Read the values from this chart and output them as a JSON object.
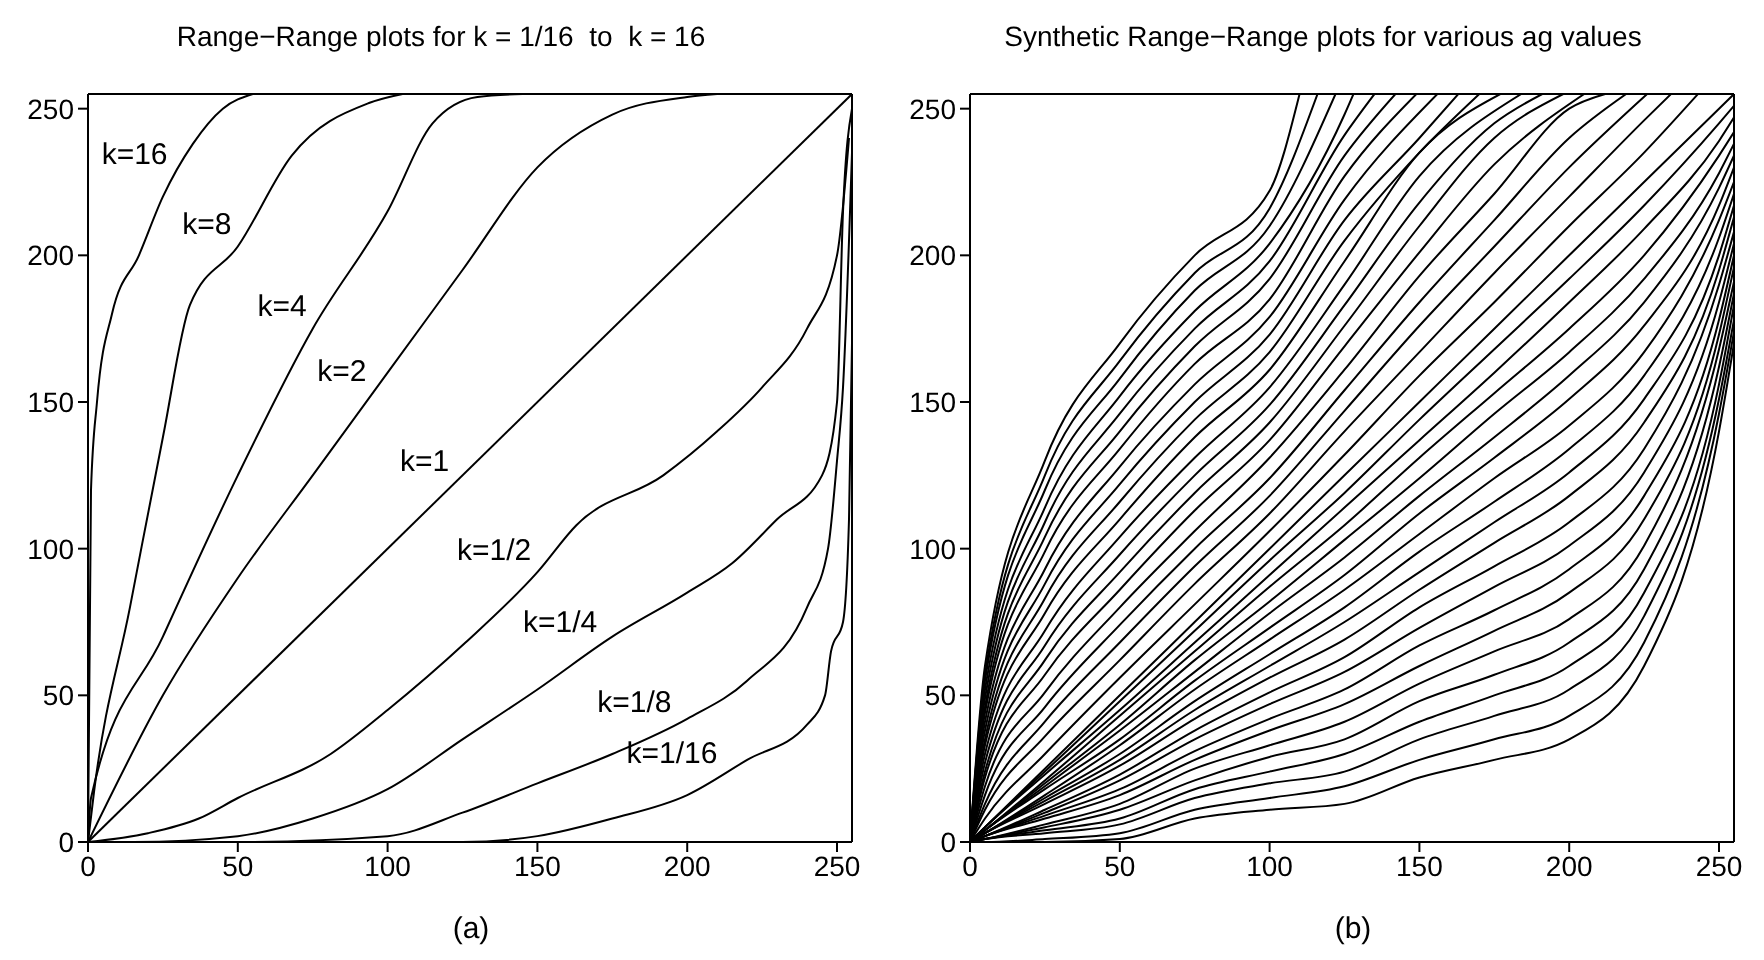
{
  "chart_data": [
    {
      "type": "line",
      "title": "Range−Range plots for k = 1/16  to  k = 16",
      "xlabel": "(a)",
      "xlim": [
        0,
        255
      ],
      "ylim": [
        0,
        255
      ],
      "xticks": [
        0,
        50,
        100,
        150,
        200,
        250
      ],
      "yticks": [
        0,
        50,
        100,
        150,
        200,
        250
      ],
      "marker": "none",
      "series": [
        {
          "name": "k=16",
          "color": "#000000",
          "x": [
            0,
            1,
            3,
            8,
            17,
            25,
            35,
            45,
            55
          ],
          "values": [
            0,
            120,
            150,
            180,
            200,
            220,
            238,
            250,
            255
          ]
        },
        {
          "name": "k=8",
          "color": "#000000",
          "x": [
            0,
            2,
            14,
            25,
            34,
            50,
            68,
            94,
            105
          ],
          "values": [
            0,
            17,
            80,
            138,
            183,
            203,
            234,
            252,
            255
          ]
        },
        {
          "name": "k=4",
          "color": "#000000",
          "x": [
            0,
            1,
            25,
            50,
            75,
            100,
            115,
            130,
            145
          ],
          "values": [
            0,
            15,
            70,
            125,
            175,
            215,
            245,
            254,
            255
          ]
        },
        {
          "name": "k=2",
          "color": "#000000",
          "x": [
            0,
            25,
            50,
            75,
            100,
            125,
            150,
            175,
            200,
            210
          ],
          "values": [
            0,
            50,
            90,
            125,
            160,
            195,
            230,
            248,
            254,
            255
          ]
        },
        {
          "name": "k=1",
          "color": "#000000",
          "x": [
            0,
            255
          ],
          "values": [
            0,
            255
          ]
        },
        {
          "name": "k=1/2",
          "color": "#000000",
          "x": [
            0,
            20,
            37,
            50,
            81,
            100,
            126,
            150,
            163,
            192,
            210,
            225,
            240,
            250,
            254
          ],
          "values": [
            0,
            3,
            8,
            15,
            30,
            45,
            68,
            92,
            108,
            125,
            140,
            155,
            175,
            200,
            240
          ]
        },
        {
          "name": "k=1/4",
          "color": "#000000",
          "x": [
            0,
            15,
            50,
            75,
            100,
            125,
            150,
            175,
            200,
            215,
            230,
            245,
            250,
            252,
            255
          ],
          "values": [
            0,
            0,
            2,
            8,
            18,
            35,
            52,
            70,
            85,
            95,
            110,
            125,
            150,
            215,
            250
          ]
        },
        {
          "name": "k=1/8",
          "color": "#000000",
          "x": [
            0,
            50,
            100,
            125,
            150,
            175,
            200,
            220,
            240,
            247,
            250,
            252,
            255
          ],
          "values": [
            0,
            0,
            2,
            10,
            20,
            30,
            42,
            55,
            80,
            100,
            130,
            155,
            235
          ]
        },
        {
          "name": "k=1/16",
          "color": "#000000",
          "x": [
            0,
            125,
            150,
            175,
            200,
            220,
            240,
            246,
            248,
            252,
            254,
            255
          ],
          "values": [
            0,
            0,
            2,
            8,
            16,
            28,
            40,
            50,
            65,
            75,
            110,
            170
          ]
        }
      ]
    },
    {
      "type": "line",
      "title": "Synthetic Range−Range plots for various ag values",
      "xlabel": "(b)",
      "xlim": [
        0,
        255
      ],
      "ylim": [
        0,
        255
      ],
      "xticks": [
        0,
        50,
        100,
        150,
        200,
        250
      ],
      "yticks": [
        0,
        50,
        100,
        150,
        200,
        250
      ],
      "marker": "none",
      "x": [
        0,
        5,
        25,
        50,
        75,
        100,
        125,
        150,
        175,
        200,
        225,
        250,
        255
      ],
      "series": [
        {
          "color": "#000000",
          "x": [
            0,
            5,
            25,
            50,
            75,
            100,
            110
          ],
          "values": [
            0,
            60,
            130,
            170,
            200,
            222,
            255
          ]
        },
        {
          "color": "#000000",
          "x": [
            0,
            5,
            25,
            50,
            75,
            100,
            116
          ],
          "values": [
            0,
            57,
            125,
            164,
            194,
            216,
            255
          ]
        },
        {
          "color": "#000000",
          "x": [
            0,
            5,
            25,
            50,
            75,
            100,
            122
          ],
          "values": [
            0,
            55,
            120,
            158,
            188,
            210,
            255
          ]
        },
        {
          "color": "#000000",
          "x": [
            0,
            5,
            25,
            50,
            75,
            100,
            125,
            128
          ],
          "values": [
            0,
            52,
            114,
            152,
            181,
            204,
            248,
            255
          ]
        },
        {
          "color": "#000000",
          "x": [
            0,
            5,
            25,
            50,
            75,
            100,
            125,
            135
          ],
          "values": [
            0,
            49,
            109,
            146,
            175,
            198,
            241,
            255
          ]
        },
        {
          "color": "#000000",
          "x": [
            0,
            5,
            25,
            50,
            75,
            100,
            125,
            142
          ],
          "values": [
            0,
            46,
            104,
            140,
            169,
            192,
            234,
            255
          ]
        },
        {
          "color": "#000000",
          "x": [
            0,
            5,
            25,
            50,
            75,
            100,
            125,
            149
          ],
          "values": [
            0,
            44,
            99,
            134,
            163,
            185,
            227,
            255
          ]
        },
        {
          "color": "#000000",
          "x": [
            0,
            5,
            25,
            50,
            75,
            100,
            125,
            156
          ],
          "values": [
            0,
            41,
            93,
            128,
            156,
            179,
            219,
            255
          ]
        },
        {
          "color": "#000000",
          "x": [
            0,
            5,
            25,
            50,
            75,
            100,
            125,
            150,
            163
          ],
          "values": [
            0,
            38,
            88,
            122,
            150,
            173,
            212,
            240,
            255
          ]
        },
        {
          "color": "#000000",
          "x": [
            0,
            5,
            25,
            50,
            75,
            100,
            125,
            150,
            170
          ],
          "values": [
            0,
            35,
            83,
            116,
            144,
            167,
            205,
            235,
            255
          ]
        },
        {
          "color": "#000000",
          "x": [
            0,
            5,
            25,
            50,
            75,
            100,
            125,
            150,
            177
          ],
          "values": [
            0,
            33,
            78,
            110,
            138,
            161,
            198,
            235,
            255
          ]
        },
        {
          "color": "#000000",
          "x": [
            0,
            5,
            25,
            50,
            75,
            100,
            125,
            150,
            184
          ],
          "values": [
            0,
            30,
            72,
            104,
            131,
            155,
            190,
            227,
            255
          ]
        },
        {
          "color": "#000000",
          "x": [
            0,
            5,
            25,
            50,
            75,
            100,
            125,
            150,
            175,
            191
          ],
          "values": [
            0,
            27,
            67,
            98,
            125,
            149,
            183,
            218,
            245,
            255
          ]
        },
        {
          "color": "#000000",
          "x": [
            0,
            5,
            25,
            50,
            75,
            100,
            125,
            150,
            175,
            198
          ],
          "values": [
            0,
            24,
            62,
            92,
            119,
            143,
            176,
            210,
            240,
            255
          ]
        },
        {
          "color": "#000000",
          "x": [
            0,
            5,
            25,
            50,
            75,
            100,
            125,
            150,
            175,
            205
          ],
          "values": [
            0,
            22,
            57,
            86,
            113,
            137,
            169,
            201,
            231,
            255
          ]
        },
        {
          "color": "#000000",
          "x": [
            0,
            5,
            25,
            50,
            75,
            100,
            125,
            150,
            175,
            200,
            212
          ],
          "values": [
            0,
            19,
            51,
            80,
            106,
            131,
            161,
            193,
            221,
            250,
            255
          ]
        },
        {
          "color": "#000000",
          "x": [
            0,
            5,
            25,
            50,
            75,
            100,
            125,
            150,
            175,
            200,
            219
          ],
          "values": [
            0,
            16,
            46,
            74,
            100,
            124,
            154,
            184,
            212,
            240,
            255
          ]
        },
        {
          "color": "#000000",
          "x": [
            0,
            5,
            25,
            50,
            75,
            100,
            125,
            150,
            175,
            200,
            226
          ],
          "values": [
            0,
            13,
            41,
            68,
            94,
            118,
            147,
            176,
            203,
            230,
            255
          ]
        },
        {
          "color": "#000000",
          "x": [
            0,
            5,
            25,
            50,
            75,
            100,
            125,
            150,
            175,
            200,
            225,
            234
          ],
          "values": [
            0,
            11,
            36,
            62,
            88,
            112,
            140,
            167,
            194,
            220,
            246,
            255
          ]
        },
        {
          "color": "#000000",
          "x": [
            0,
            5,
            25,
            50,
            75,
            100,
            125,
            150,
            175,
            200,
            225,
            243
          ],
          "values": [
            0,
            8,
            30,
            56,
            81,
            106,
            132,
            159,
            184,
            210,
            235,
            255
          ]
        },
        {
          "color": "#000000",
          "values": [
            0,
            5,
            25,
            50,
            75,
            100,
            125,
            150,
            175,
            200,
            225,
            250,
            255
          ]
        },
        {
          "color": "#000000",
          "values": [
            0,
            5,
            24,
            48,
            72,
            96,
            119,
            144,
            168,
            192,
            217,
            245,
            251
          ]
        },
        {
          "color": "#000000",
          "values": [
            0,
            5,
            23,
            45,
            68,
            91,
            114,
            137,
            160,
            184,
            209,
            239,
            247
          ]
        },
        {
          "color": "#000000",
          "values": [
            0,
            4,
            21,
            43,
            65,
            87,
            108,
            131,
            153,
            175,
            200,
            234,
            242
          ]
        },
        {
          "color": "#000000",
          "values": [
            0,
            4,
            20,
            40,
            62,
            82,
            103,
            124,
            146,
            167,
            192,
            228,
            238
          ]
        },
        {
          "color": "#000000",
          "values": [
            0,
            4,
            19,
            38,
            58,
            78,
            97,
            118,
            138,
            159,
            184,
            223,
            234
          ]
        },
        {
          "color": "#000000",
          "values": [
            0,
            4,
            18,
            35,
            55,
            73,
            91,
            112,
            131,
            151,
            176,
            217,
            230
          ]
        },
        {
          "color": "#000000",
          "values": [
            0,
            3,
            16,
            33,
            52,
            69,
            86,
            105,
            124,
            142,
            167,
            212,
            225
          ]
        },
        {
          "color": "#000000",
          "values": [
            0,
            3,
            15,
            30,
            48,
            64,
            80,
            99,
            116,
            134,
            159,
            206,
            221
          ]
        },
        {
          "color": "#000000",
          "values": [
            0,
            3,
            14,
            28,
            45,
            60,
            75,
            92,
            109,
            126,
            151,
            200,
            217
          ]
        },
        {
          "color": "#000000",
          "values": [
            0,
            3,
            13,
            26,
            42,
            56,
            69,
            86,
            102,
            118,
            143,
            195,
            213
          ]
        },
        {
          "color": "#000000",
          "values": [
            0,
            2,
            11,
            23,
            38,
            51,
            63,
            80,
            94,
            109,
            134,
            190,
            208
          ]
        },
        {
          "color": "#000000",
          "values": [
            0,
            2,
            10,
            21,
            35,
            47,
            58,
            73,
            87,
            101,
            126,
            184,
            204
          ]
        },
        {
          "color": "#000000",
          "values": [
            0,
            2,
            9,
            18,
            31,
            42,
            52,
            67,
            79,
            93,
            118,
            178,
            200
          ]
        },
        {
          "color": "#000000",
          "values": [
            0,
            2,
            8,
            16,
            28,
            38,
            47,
            60,
            72,
            85,
            110,
            173,
            196
          ]
        },
        {
          "color": "#000000",
          "values": [
            0,
            1,
            6,
            13,
            25,
            33,
            41,
            54,
            65,
            76,
            101,
            168,
            191
          ]
        },
        {
          "color": "#000000",
          "values": [
            0,
            1,
            5,
            11,
            21,
            29,
            35,
            48,
            57,
            68,
            93,
            162,
            187
          ]
        },
        {
          "color": "#000000",
          "values": [
            0,
            1,
            4,
            8,
            18,
            24,
            30,
            41,
            50,
            60,
            85,
            156,
            183
          ]
        },
        {
          "color": "#000000",
          "values": [
            0,
            1,
            3,
            6,
            15,
            20,
            24,
            35,
            43,
            52,
            77,
            151,
            178
          ]
        },
        {
          "color": "#000000",
          "values": [
            0,
            0,
            1,
            3,
            11,
            15,
            19,
            28,
            35,
            43,
            68,
            146,
            174
          ]
        },
        {
          "color": "#000000",
          "values": [
            0,
            0,
            0,
            1,
            8,
            11,
            13,
            22,
            28,
            35,
            60,
            140,
            170
          ]
        }
      ]
    }
  ]
}
